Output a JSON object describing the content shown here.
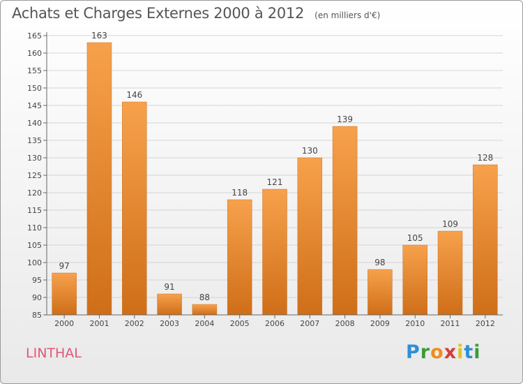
{
  "header": {
    "title": "Achats et Charges Externes 2000 à 2012",
    "unit": "(en milliers d'€)"
  },
  "footer": {
    "commune": "LINTHAL",
    "logo_letters": [
      "P",
      "r",
      "o",
      "x",
      "i",
      "t",
      "i"
    ],
    "logo_colors": [
      "#2e8fd6",
      "#3a9c3a",
      "#f08c1c",
      "#d83a3a",
      "#e0c21a",
      "#2e8fd6",
      "#3a9c3a"
    ]
  },
  "chart_data": {
    "type": "bar",
    "title": "Achats et Charges Externes 2000 à 2012",
    "subtitle": "(en milliers d'€)",
    "categories": [
      "2000",
      "2001",
      "2002",
      "2003",
      "2004",
      "2005",
      "2006",
      "2007",
      "2008",
      "2009",
      "2010",
      "2011",
      "2012"
    ],
    "values": [
      97,
      163,
      146,
      91,
      88,
      118,
      121,
      130,
      139,
      98,
      105,
      109,
      128
    ],
    "ylim": [
      85,
      165
    ],
    "yticks": [
      85,
      90,
      95,
      100,
      105,
      110,
      115,
      120,
      125,
      130,
      135,
      140,
      145,
      150,
      155,
      160,
      165
    ],
    "grid": true,
    "bar_color_light": "#f7a14c",
    "bar_color_dark": "#cf6e18"
  }
}
